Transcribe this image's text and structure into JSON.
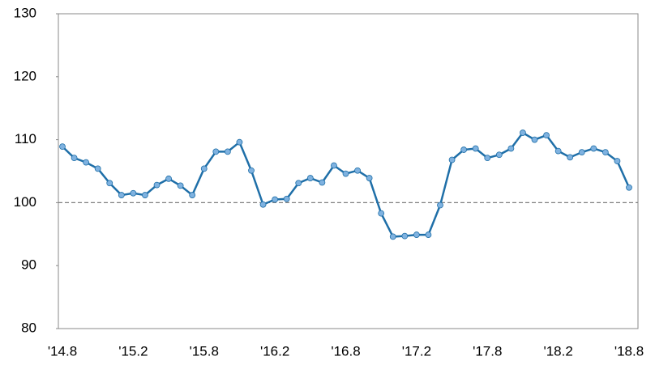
{
  "chart_data": {
    "type": "line",
    "categories": [
      "'14.8",
      null,
      null,
      null,
      null,
      null,
      "'15.2",
      null,
      null,
      null,
      null,
      null,
      "'15.8",
      null,
      null,
      null,
      null,
      null,
      "'16.2",
      null,
      null,
      null,
      null,
      null,
      "'16.8",
      null,
      null,
      null,
      null,
      null,
      "'17.2",
      null,
      null,
      null,
      null,
      null,
      "'17.8",
      null,
      null,
      null,
      null,
      null,
      "'18.2",
      null,
      null,
      null,
      null,
      null,
      "'18.8"
    ],
    "values": [
      108.9,
      107.1,
      106.4,
      105.4,
      103.1,
      101.2,
      101.5,
      101.2,
      102.8,
      103.8,
      102.7,
      101.2,
      105.4,
      108.1,
      108.1,
      109.6,
      105.1,
      99.7,
      100.5,
      100.6,
      103.1,
      103.9,
      103.2,
      105.9,
      104.6,
      105.1,
      103.9,
      98.3,
      94.6,
      94.7,
      94.9,
      94.9,
      99.6,
      106.8,
      108.4,
      108.6,
      107.1,
      107.6,
      108.6,
      111.1,
      110.0,
      110.7,
      108.2,
      107.2,
      108.0,
      108.6,
      108.0,
      106.6,
      102.4
    ],
    "color": "#1f6fa8",
    "marker_color": "#7fb2e0",
    "ylim": [
      80,
      130
    ],
    "yticks": [
      80,
      90,
      100,
      110,
      120,
      130
    ],
    "reference_line": 100,
    "reference_color": "#808080"
  }
}
